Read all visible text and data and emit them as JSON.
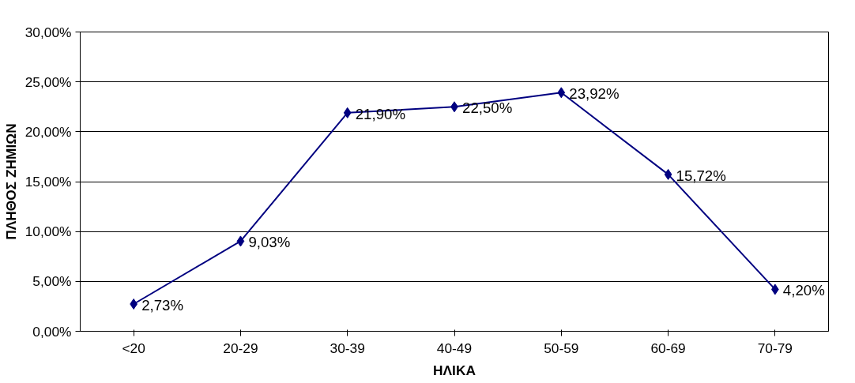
{
  "chart_data": {
    "type": "line",
    "xlabel": "ΗΛΙΚΑ",
    "ylabel": "ΠΛΗΘΟΣ ΖΗΜΙΩΝ",
    "categories": [
      "<20",
      "20-29",
      "30-39",
      "40-49",
      "50-59",
      "60-69",
      "70-79"
    ],
    "series": [
      {
        "color": "#000080",
        "values": [
          2.73,
          9.03,
          21.9,
          22.5,
          23.92,
          15.72,
          4.2
        ],
        "value_labels": [
          "2,73%",
          "9,03%",
          "21,90%",
          "22,50%",
          "23,92%",
          "15,72%",
          "4,20%"
        ]
      }
    ],
    "ylim": [
      0,
      30
    ],
    "yticks": [
      {
        "value": 0,
        "label": "0,00%"
      },
      {
        "value": 5,
        "label": "5,00%"
      },
      {
        "value": 10,
        "label": "10,00%"
      },
      {
        "value": 15,
        "label": "15,00%"
      },
      {
        "value": 20,
        "label": "20,00%"
      },
      {
        "value": 25,
        "label": "25,00%"
      },
      {
        "value": 30,
        "label": "30,00%"
      }
    ],
    "grid": "y",
    "marker": "diamond",
    "line_style": "solid"
  }
}
